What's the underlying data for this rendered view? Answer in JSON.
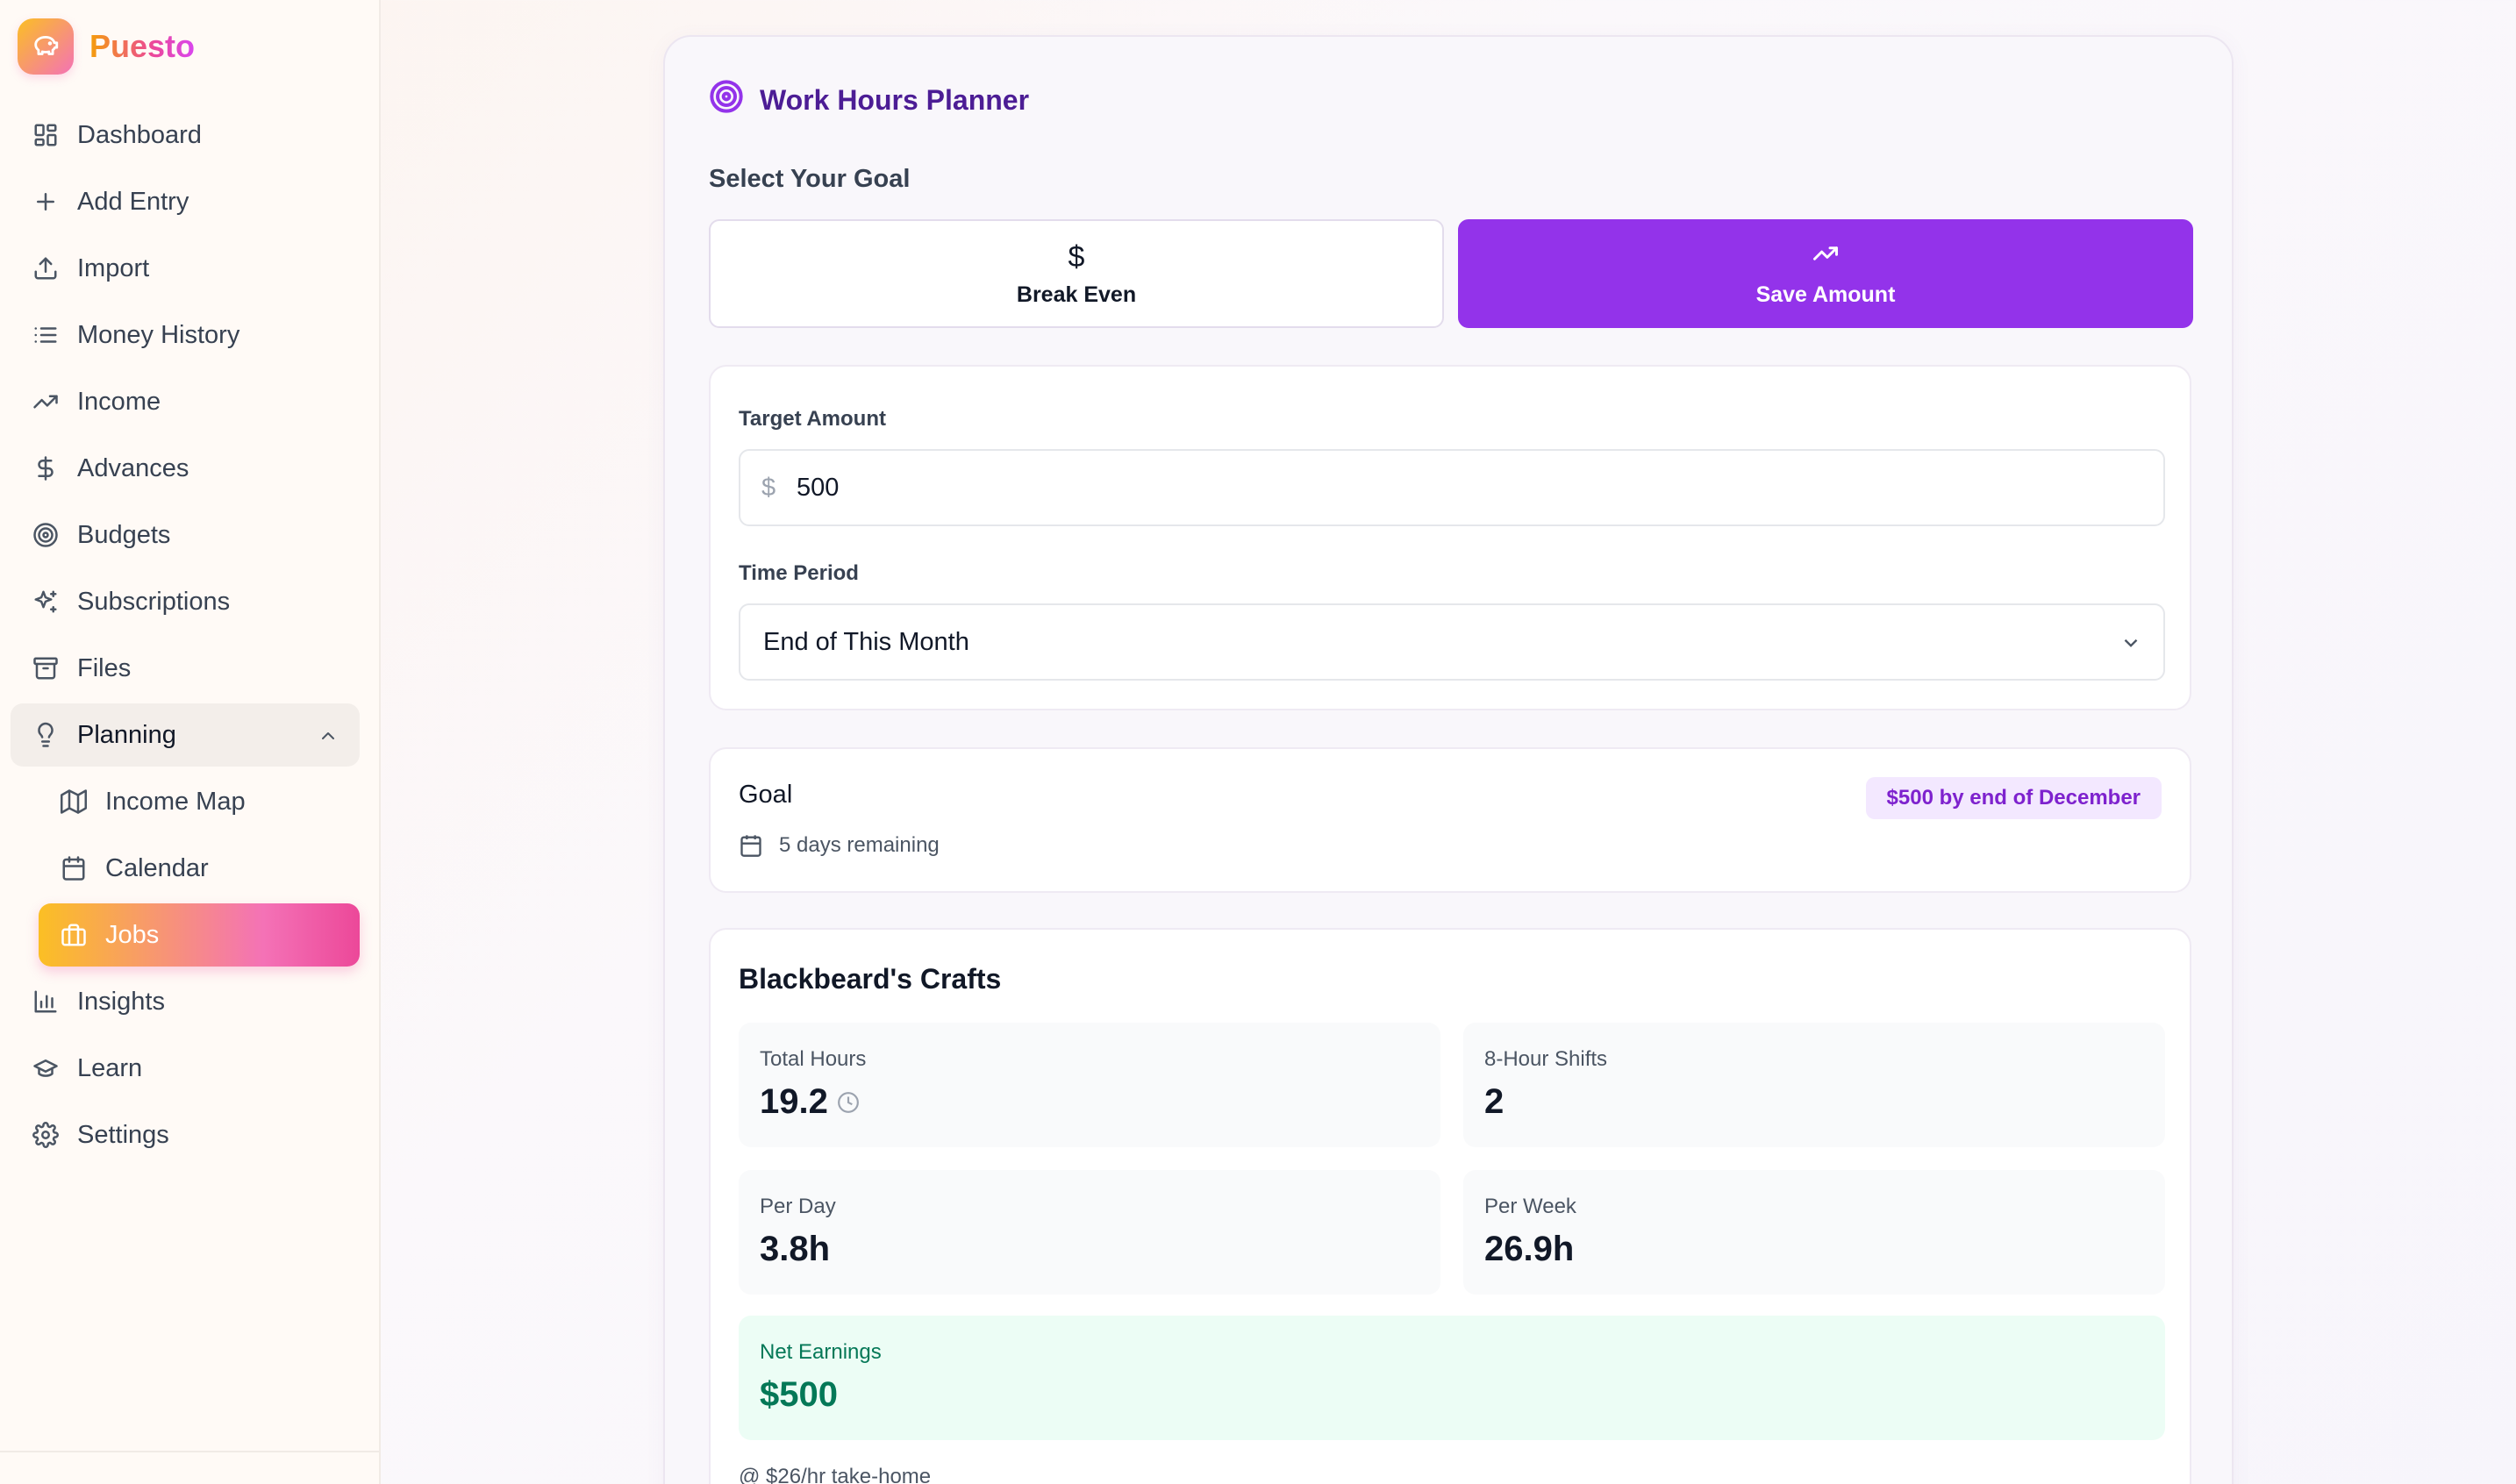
{
  "brand": {
    "name": "Puesto"
  },
  "sidebar": {
    "items": [
      {
        "label": "Dashboard",
        "icon": "dashboard-icon"
      },
      {
        "label": "Add Entry",
        "icon": "plus-icon"
      },
      {
        "label": "Import",
        "icon": "upload-icon"
      },
      {
        "label": "Money History",
        "icon": "list-icon"
      },
      {
        "label": "Income",
        "icon": "trending-up-icon"
      },
      {
        "label": "Advances",
        "icon": "dollar-icon"
      },
      {
        "label": "Budgets",
        "icon": "target-icon"
      },
      {
        "label": "Subscriptions",
        "icon": "sparkles-icon"
      },
      {
        "label": "Files",
        "icon": "archive-icon"
      }
    ],
    "planning": {
      "label": "Planning",
      "icon": "lightbulb-icon",
      "children": [
        {
          "label": "Income Map",
          "icon": "map-icon"
        },
        {
          "label": "Calendar",
          "icon": "calendar-icon"
        },
        {
          "label": "Jobs",
          "icon": "briefcase-icon",
          "active": true
        }
      ]
    },
    "bottom_items": [
      {
        "label": "Insights",
        "icon": "bar-chart-icon"
      },
      {
        "label": "Learn",
        "icon": "graduation-cap-icon"
      },
      {
        "label": "Settings",
        "icon": "gear-icon"
      }
    ]
  },
  "planner": {
    "title": "Work Hours Planner",
    "goal_section_label": "Select Your Goal",
    "goal_options": [
      {
        "label": "Break Even",
        "icon_text": "$",
        "selected": false
      },
      {
        "label": "Save Amount",
        "icon": "trending-up-icon",
        "selected": true
      }
    ],
    "target_label": "Target Amount",
    "target_prefix": "$",
    "target_value": "500",
    "period_label": "Time Period",
    "period_value": "End of This Month",
    "goal": {
      "title": "Goal",
      "badge": "$500 by end of December",
      "remaining": "5 days remaining"
    },
    "job": {
      "name": "Blackbeard's Crafts",
      "stats": [
        {
          "label": "Total Hours",
          "value": "19.2"
        },
        {
          "label": "8-Hour Shifts",
          "value": "2"
        },
        {
          "label": "Per Day",
          "value": "3.8h"
        },
        {
          "label": "Per Week",
          "value": "26.9h"
        }
      ],
      "earnings_label": "Net Earnings",
      "earnings_value": "$500",
      "rate_note": "@ $26/hr take-home"
    }
  },
  "colors": {
    "accent": "#9333ea",
    "accent_dark": "#4c1d95",
    "brand_gradient_start": "#fbbf24",
    "brand_gradient_end": "#ec4899",
    "earnings_green": "#047857"
  }
}
